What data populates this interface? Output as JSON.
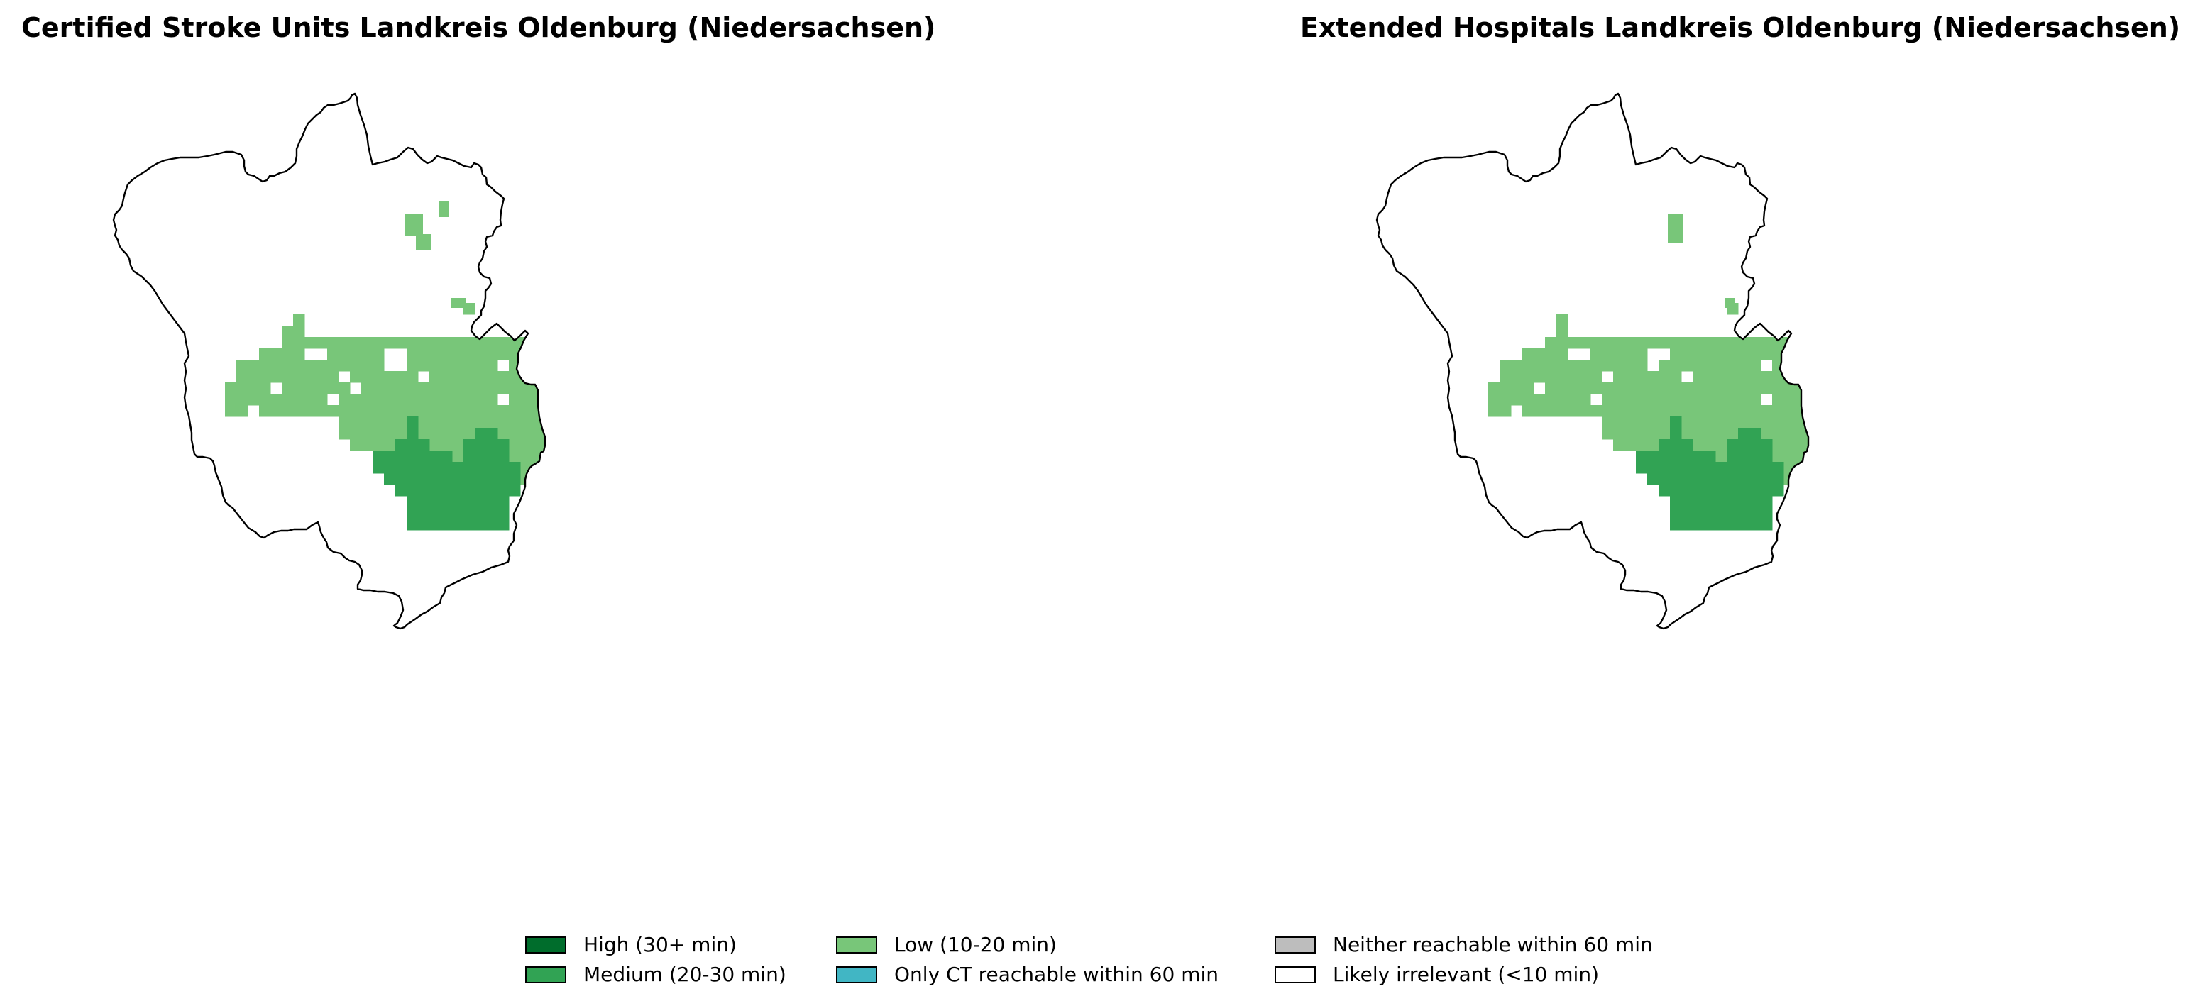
{
  "colors": {
    "high": "#006d2c",
    "medium": "#31a354",
    "low": "#78c679",
    "ct_only": "#41b6c4",
    "neither": "#bdbdbd",
    "irrelevant": "#ffffff",
    "outline": "#000000"
  },
  "panels": [
    {
      "title": "Certified Stroke Units Landkreis Oldenburg (Niedersachsen)",
      "variant": "certified"
    },
    {
      "title": "Extended Hospitals Landkreis Oldenburg (Niedersachsen)",
      "variant": "extended"
    }
  ],
  "legend": {
    "items": [
      {
        "label": "High (30+ min)",
        "color_key": "high"
      },
      {
        "label": "Medium (20-30 min)",
        "color_key": "medium"
      },
      {
        "label": "Low (10-20 min)",
        "color_key": "low"
      },
      {
        "label": "Only CT reachable within 60 min",
        "color_key": "ct_only"
      },
      {
        "label": "Neither reachable within 60 min",
        "color_key": "neither"
      },
      {
        "label": "Likely irrelevant (<10 min)",
        "color_key": "irrelevant"
      }
    ]
  }
}
